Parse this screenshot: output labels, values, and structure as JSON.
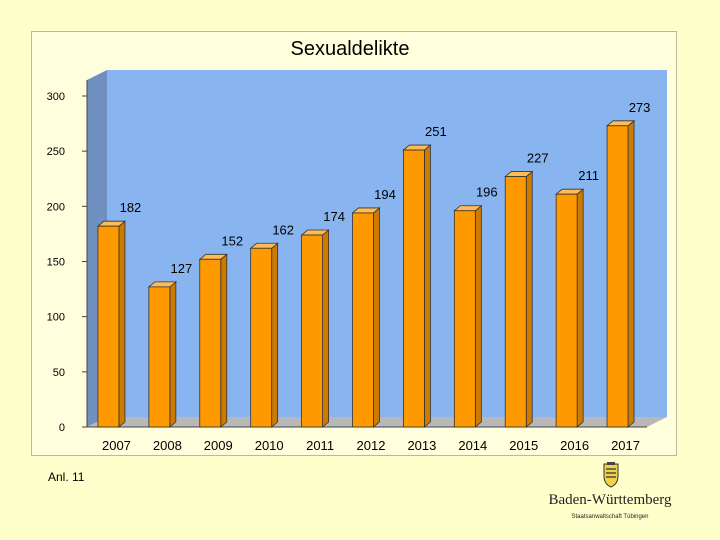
{
  "colors": {
    "background": "#ffffcc",
    "plot_back": "#88b4f0",
    "bar_front": "#ff9900",
    "bar_side": "#cc7a00",
    "bar_top": "#ffbb55"
  },
  "footer": {
    "annex": "Anl. 11",
    "logo_name": "Baden-Württemberg",
    "logo_sub": "Staatsanwaltschaft Tübingen",
    "logo_icon": "coat-of-arms-icon"
  },
  "chart_data": {
    "type": "bar",
    "title": "Sexualdelikte",
    "xlabel": "",
    "ylabel": "",
    "categories": [
      "2007",
      "2008",
      "2009",
      "2010",
      "2011",
      "2012",
      "2013",
      "2014",
      "2015",
      "2016",
      "2017"
    ],
    "values": [
      182,
      127,
      152,
      162,
      174,
      194,
      251,
      196,
      227,
      211,
      273
    ],
    "ylim": [
      0,
      300
    ],
    "yticks": [
      0,
      50,
      100,
      150,
      200,
      250,
      300
    ],
    "grid": false,
    "legend": "none",
    "style": "3d"
  }
}
